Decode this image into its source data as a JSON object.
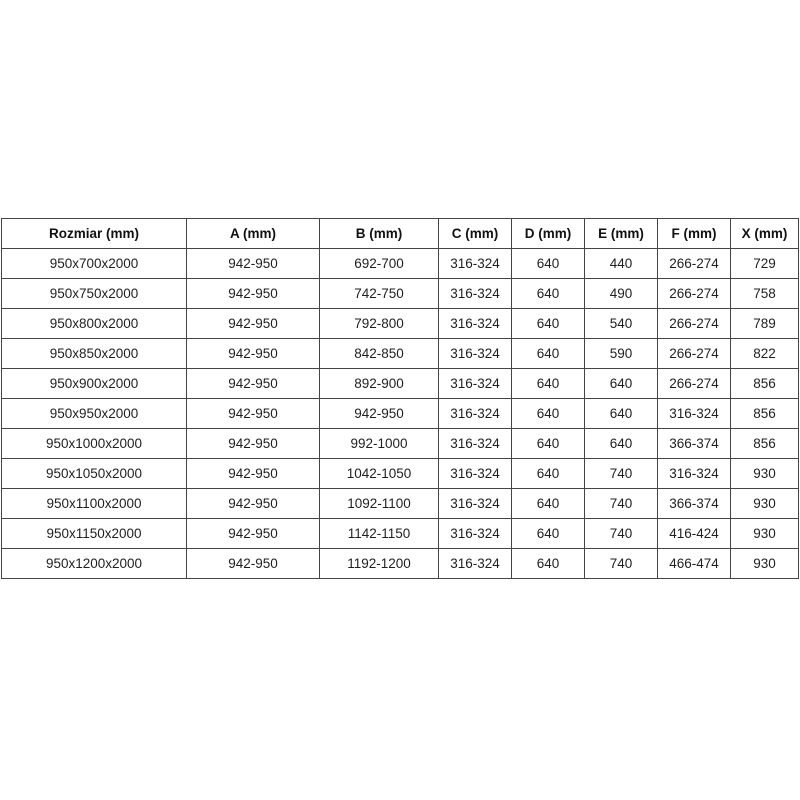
{
  "table": {
    "columns": [
      "Rozmiar (mm)",
      "A (mm)",
      "B (mm)",
      "C (mm)",
      "D (mm)",
      "E (mm)",
      "F (mm)",
      "X (mm)"
    ],
    "rows": [
      [
        "950x700x2000",
        "942-950",
        "692-700",
        "316-324",
        "640",
        "440",
        "266-274",
        "729"
      ],
      [
        "950x750x2000",
        "942-950",
        "742-750",
        "316-324",
        "640",
        "490",
        "266-274",
        "758"
      ],
      [
        "950x800x2000",
        "942-950",
        "792-800",
        "316-324",
        "640",
        "540",
        "266-274",
        "789"
      ],
      [
        "950x850x2000",
        "942-950",
        "842-850",
        "316-324",
        "640",
        "590",
        "266-274",
        "822"
      ],
      [
        "950x900x2000",
        "942-950",
        "892-900",
        "316-324",
        "640",
        "640",
        "266-274",
        "856"
      ],
      [
        "950x950x2000",
        "942-950",
        "942-950",
        "316-324",
        "640",
        "640",
        "316-324",
        "856"
      ],
      [
        "950x1000x2000",
        "942-950",
        "992-1000",
        "316-324",
        "640",
        "640",
        "366-374",
        "856"
      ],
      [
        "950x1050x2000",
        "942-950",
        "1042-1050",
        "316-324",
        "640",
        "740",
        "316-324",
        "930"
      ],
      [
        "950x1100x2000",
        "942-950",
        "1092-1100",
        "316-324",
        "640",
        "740",
        "366-374",
        "930"
      ],
      [
        "950x1150x2000",
        "942-950",
        "1142-1150",
        "316-324",
        "640",
        "740",
        "416-424",
        "930"
      ],
      [
        "950x1200x2000",
        "942-950",
        "1192-1200",
        "316-324",
        "640",
        "740",
        "466-474",
        "930"
      ]
    ],
    "colors": {
      "border": "#454545",
      "text": "#1f1f1f",
      "background": "#ffffff"
    }
  }
}
